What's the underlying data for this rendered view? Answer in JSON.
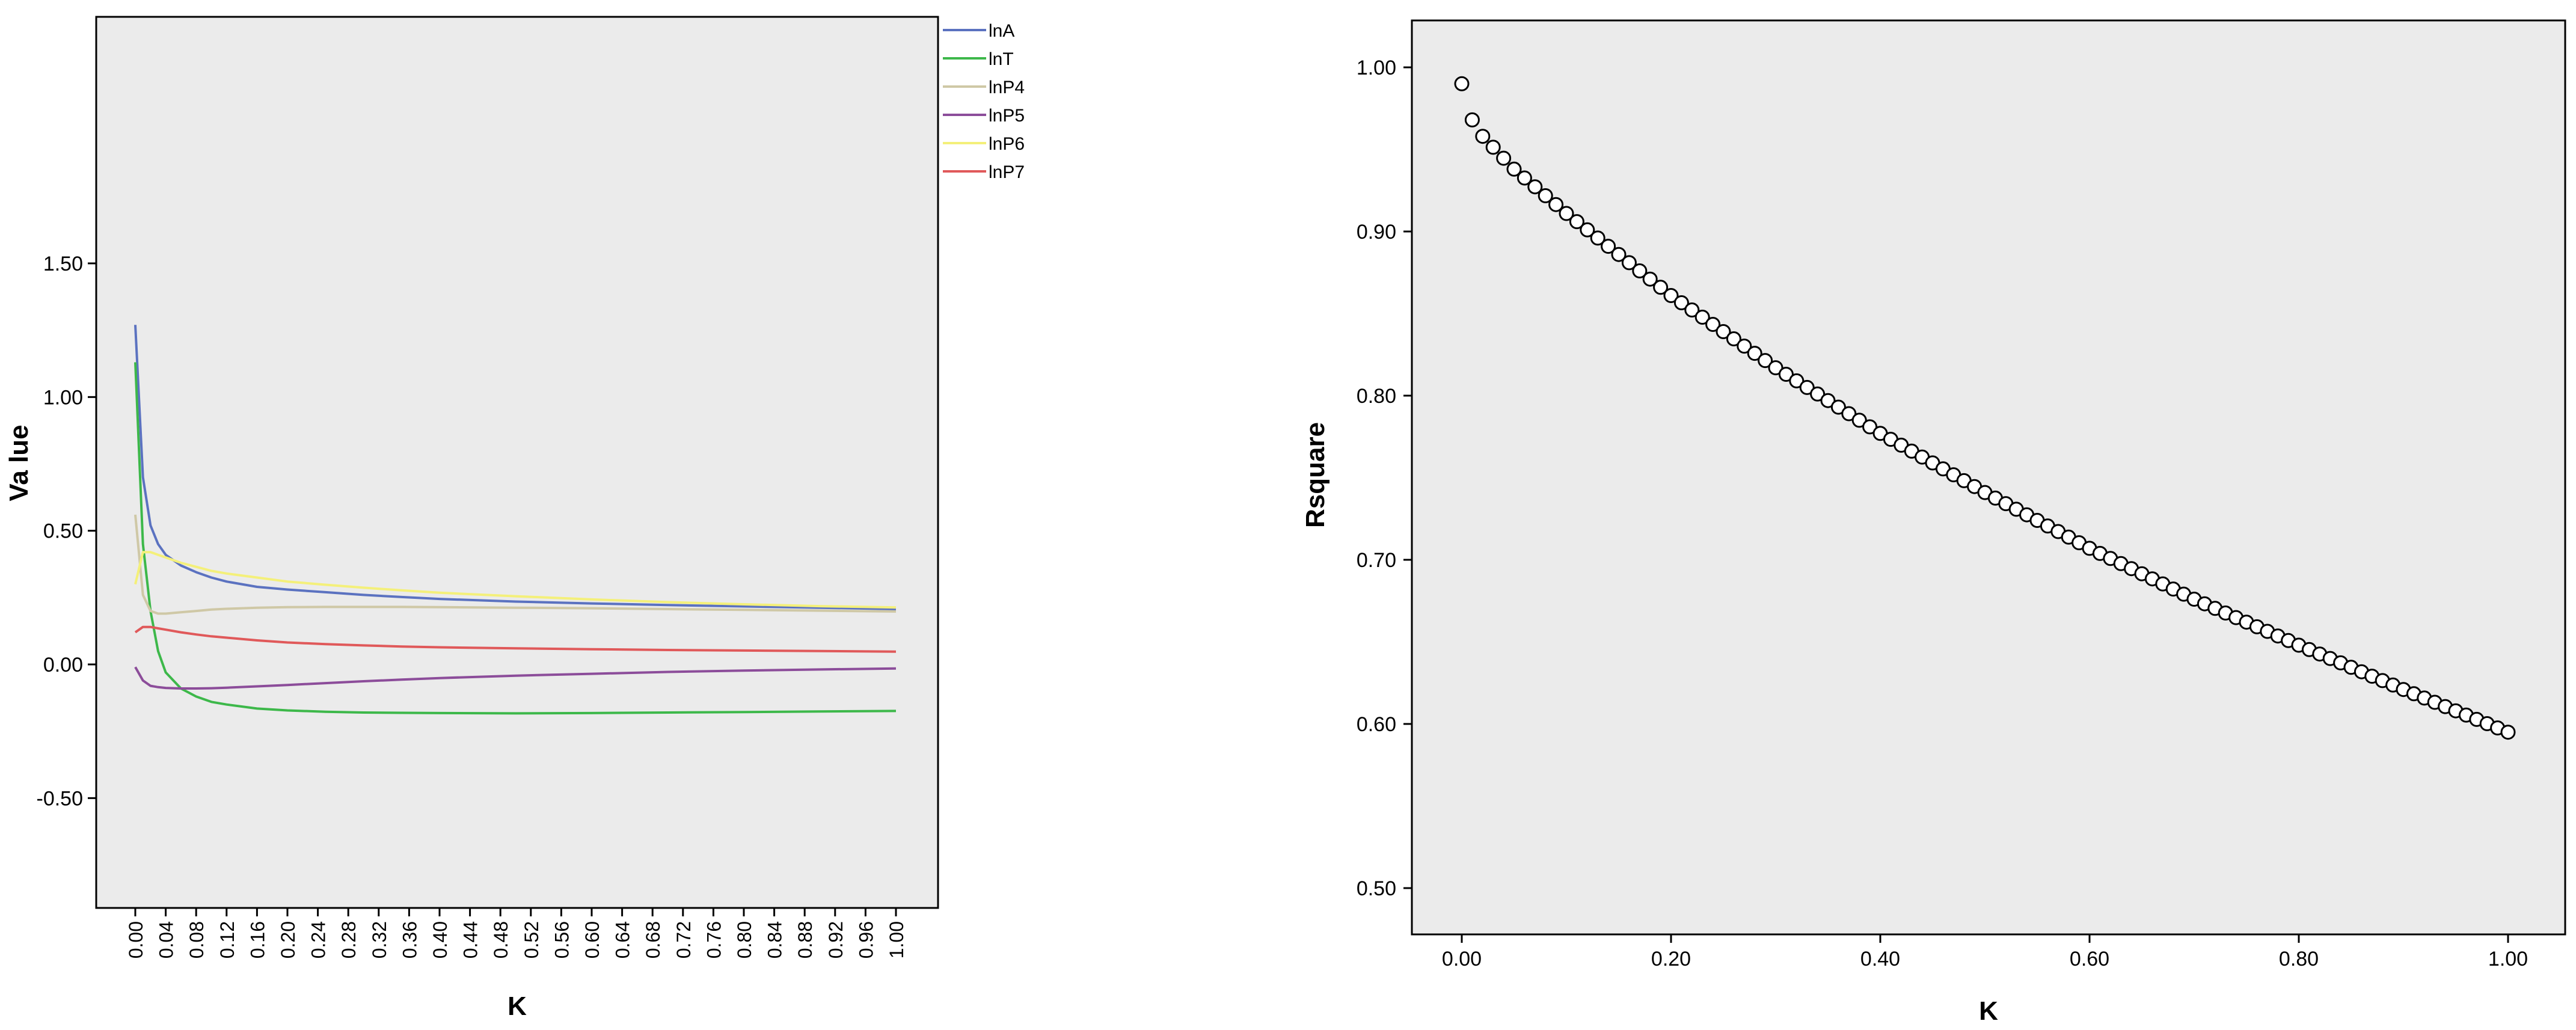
{
  "chart_data": [
    {
      "type": "line",
      "title": "",
      "xlabel": "K",
      "ylabel": "Va lue",
      "ylim": [
        -0.55,
        1.6
      ],
      "grid": false,
      "legend_position": "top-right outside plot",
      "yticks": [
        "-0.50",
        "0.00",
        "0.50",
        "1.00",
        "1.50"
      ],
      "ytick_values": [
        -0.5,
        0,
        0.5,
        1.0,
        1.5
      ],
      "xtick_labels": [
        "0.00",
        "0.04",
        "0.08",
        "0.12",
        "0.16",
        "0.20",
        "0.24",
        "0.28",
        "0.32",
        "0.36",
        "0.40",
        "0.44",
        "0.48",
        "0.52",
        "0.56",
        "0.60",
        "0.64",
        "0.68",
        "0.72",
        "0.76",
        "0.80",
        "0.84",
        "0.88",
        "0.92",
        "0.96",
        "1.00"
      ],
      "xtick_values": [
        0,
        0.04,
        0.08,
        0.12,
        0.16,
        0.2,
        0.24,
        0.28,
        0.32,
        0.36,
        0.4,
        0.44,
        0.48,
        0.52,
        0.56,
        0.6,
        0.64,
        0.68,
        0.72,
        0.76,
        0.8,
        0.84,
        0.88,
        0.92,
        0.96,
        1.0
      ],
      "x": [
        0.0,
        0.01,
        0.02,
        0.03,
        0.04,
        0.06,
        0.08,
        0.1,
        0.12,
        0.16,
        0.2,
        0.25,
        0.3,
        0.35,
        0.4,
        0.5,
        0.6,
        0.7,
        0.8,
        0.9,
        1.0
      ],
      "series": [
        {
          "name": "lnA",
          "color": "#5b72c0",
          "values": [
            1.27,
            0.7,
            0.52,
            0.45,
            0.41,
            0.37,
            0.345,
            0.325,
            0.31,
            0.29,
            0.28,
            0.27,
            0.26,
            0.252,
            0.245,
            0.235,
            0.228,
            0.222,
            0.217,
            0.212,
            0.207
          ]
        },
        {
          "name": "lnT",
          "color": "#3db84a",
          "values": [
            1.13,
            0.45,
            0.2,
            0.05,
            -0.03,
            -0.09,
            -0.12,
            -0.14,
            -0.15,
            -0.165,
            -0.172,
            -0.177,
            -0.18,
            -0.181,
            -0.182,
            -0.183,
            -0.182,
            -0.18,
            -0.178,
            -0.176,
            -0.174
          ]
        },
        {
          "name": "lnP4",
          "color": "#cfc8a6",
          "values": [
            0.56,
            0.26,
            0.2,
            0.19,
            0.19,
            0.195,
            0.2,
            0.205,
            0.208,
            0.212,
            0.214,
            0.215,
            0.215,
            0.215,
            0.214,
            0.212,
            0.21,
            0.207,
            0.204,
            0.201,
            0.198
          ]
        },
        {
          "name": "lnP5",
          "color": "#8c4d9a",
          "values": [
            -0.01,
            -0.06,
            -0.08,
            -0.085,
            -0.088,
            -0.09,
            -0.09,
            -0.089,
            -0.087,
            -0.082,
            -0.077,
            -0.07,
            -0.063,
            -0.057,
            -0.051,
            -0.042,
            -0.035,
            -0.028,
            -0.023,
            -0.019,
            -0.015
          ]
        },
        {
          "name": "lnP6",
          "color": "#f4f07a",
          "values": [
            0.3,
            0.42,
            0.42,
            0.41,
            0.4,
            0.38,
            0.365,
            0.35,
            0.34,
            0.325,
            0.31,
            0.298,
            0.287,
            0.277,
            0.268,
            0.255,
            0.243,
            0.233,
            0.225,
            0.218,
            0.213
          ]
        },
        {
          "name": "lnP7",
          "color": "#e0595a",
          "values": [
            0.12,
            0.14,
            0.14,
            0.135,
            0.13,
            0.12,
            0.112,
            0.105,
            0.1,
            0.09,
            0.082,
            0.076,
            0.071,
            0.067,
            0.064,
            0.06,
            0.057,
            0.054,
            0.052,
            0.05,
            0.048
          ]
        }
      ]
    },
    {
      "type": "scatter",
      "title": "",
      "xlabel": "K",
      "ylabel": "Rsquare",
      "xlim": [
        -0.05,
        1.05
      ],
      "ylim": [
        0.47,
        1.03
      ],
      "grid": false,
      "xticks": [
        "0.00",
        "0.20",
        "0.40",
        "0.60",
        "0.80",
        "1.00"
      ],
      "xtick_values": [
        0,
        0.2,
        0.4,
        0.6,
        0.8,
        1.0
      ],
      "yticks": [
        "0.50",
        "0.60",
        "0.70",
        "0.80",
        "0.90",
        "1.00"
      ],
      "ytick_values": [
        0.5,
        0.6,
        0.7,
        0.8,
        0.9,
        1.0
      ],
      "marker": "open-circle",
      "point_anchors": {
        "x": [
          0.0,
          0.01,
          0.02,
          0.05,
          0.1,
          0.2,
          0.3,
          0.4,
          0.5,
          0.6,
          0.7,
          0.8,
          0.9,
          1.0
        ],
        "y": [
          0.99,
          0.968,
          0.958,
          0.938,
          0.911,
          0.861,
          0.817,
          0.777,
          0.741,
          0.707,
          0.676,
          0.648,
          0.621,
          0.595
        ]
      },
      "x_step": 0.01
    }
  ]
}
